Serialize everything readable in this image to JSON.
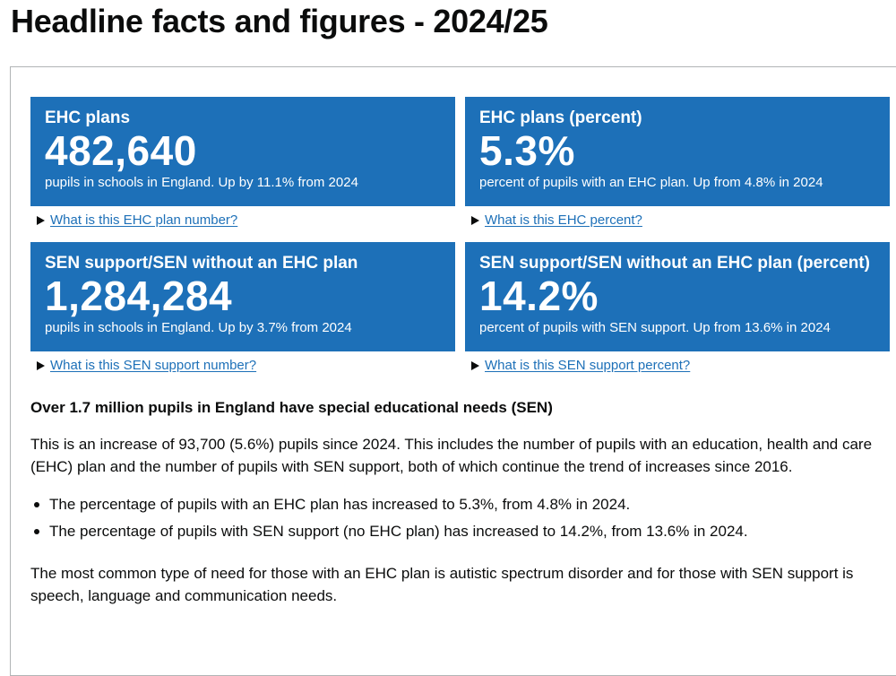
{
  "page": {
    "title": "Headline facts and figures - 2024/25"
  },
  "tiles": [
    {
      "title": "EHC plans",
      "value": "482,640",
      "caption": "pupils in schools in England. Up by 11.1% from 2024",
      "details_link": "What is this EHC plan number?"
    },
    {
      "title": "EHC plans (percent)",
      "value": "5.3%",
      "caption": "percent of pupils with an EHC plan. Up from 4.8% in 2024",
      "details_link": "What is this EHC percent?"
    },
    {
      "title": "SEN support/SEN without an EHC plan",
      "value": "1,284,284",
      "caption": "pupils in schools in England. Up by 3.7% from 2024",
      "details_link": "What is this SEN support number?"
    },
    {
      "title": "SEN support/SEN without an EHC plan (percent)",
      "value": "14.2%",
      "caption": "percent of pupils with SEN support. Up from 13.6% in 2024",
      "details_link": "What is this SEN support percent?"
    }
  ],
  "content": {
    "heading": "Over 1.7 million pupils in England have special educational needs (SEN)",
    "paragraph1": "This is an increase of 93,700 (5.6%) pupils since 2024. This includes the number of pupils with an education, health and care (EHC) plan and the number of pupils with SEN support, both of which continue the trend of increases since 2016.",
    "bullets": [
      "The percentage of pupils with an EHC plan has increased to 5.3%, from 4.8% in 2024.",
      "The percentage of pupils with SEN support (no EHC plan) has increased to 14.2%, from 13.6% in 2024."
    ],
    "paragraph2": "The most common type of need for those with an EHC plan is autistic spectrum disorder and for those with SEN support is speech, language and communication needs."
  },
  "colors": {
    "tile_background": "#1d70b8",
    "link": "#1d70b8",
    "text": "#0b0c0c",
    "panel_border": "#b1b4b6"
  },
  "icons": {
    "details_toggle": "triangle-right-icon",
    "bullet": "bullet-dot-icon"
  }
}
